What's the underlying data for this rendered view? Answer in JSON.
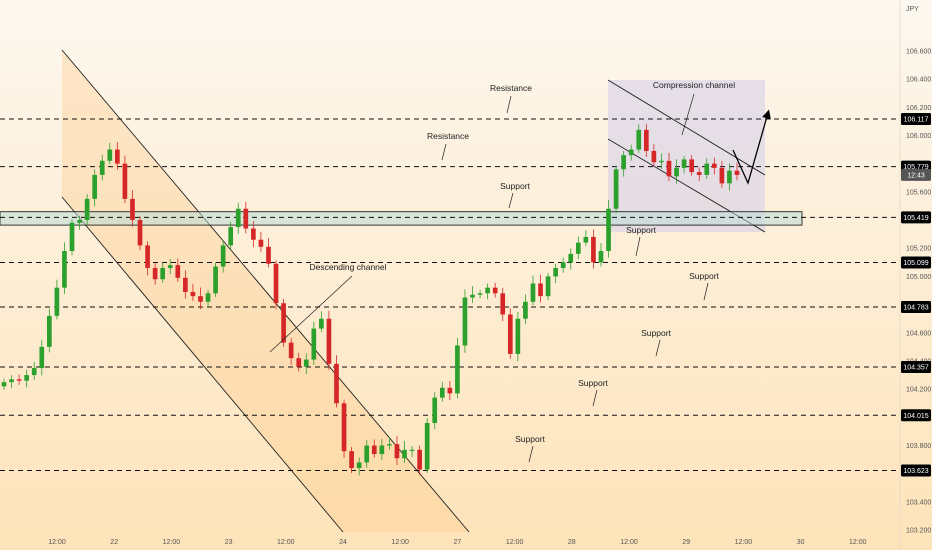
{
  "chart_data": {
    "type": "candlestick",
    "currency_label": "JPY",
    "price_ticks": [
      "106.600",
      "106.400",
      "106.200",
      "106.000",
      "105.800",
      "105.600",
      "105.400",
      "105.200",
      "105.000",
      "104.800",
      "104.600",
      "104.400",
      "104.200",
      "104.000",
      "103.800",
      "103.600",
      "103.400",
      "103.200"
    ],
    "tick_values": [
      106.6,
      106.4,
      106.2,
      106.0,
      105.8,
      105.6,
      105.4,
      105.2,
      105.0,
      104.8,
      104.6,
      104.4,
      104.2,
      104.0,
      103.8,
      103.6,
      103.4,
      103.2
    ],
    "ylim": [
      103.13,
      106.89
    ],
    "time_labels": [
      "12:00",
      "22",
      "12:00",
      "23",
      "12:00",
      "24",
      "12:00",
      "27",
      "12:00",
      "28",
      "12:00",
      "29",
      "12:00",
      "30",
      "12:00"
    ],
    "level_labels": [
      "106.117",
      "105.779",
      "105.419",
      "105.099",
      "104.783",
      "104.357",
      "104.015",
      "103.623"
    ],
    "levels": [
      106.117,
      105.779,
      105.419,
      105.099,
      104.783,
      104.357,
      104.015,
      103.623
    ],
    "current_price_label": "12:43",
    "current_price": 105.72,
    "up_color": "#2ca02c",
    "down_color": "#d62728",
    "annotations": [
      "Resistance",
      "Resistance",
      "Support",
      "Support",
      "Support",
      "Support",
      "Support",
      "Support",
      "Descending channel",
      "Compression channel"
    ],
    "candles_close": [
      104.25,
      104.27,
      104.26,
      104.3,
      104.35,
      104.5,
      104.72,
      104.92,
      105.18,
      105.38,
      105.4,
      105.55,
      105.72,
      105.82,
      105.9,
      105.8,
      105.55,
      105.4,
      105.22,
      105.06,
      104.98,
      105.06,
      105.08,
      104.99,
      104.89,
      104.86,
      104.82,
      104.88,
      105.07,
      105.22,
      105.35,
      105.48,
      105.34,
      105.26,
      105.21,
      105.09,
      104.81,
      104.53,
      104.42,
      104.36,
      104.41,
      104.63,
      104.7,
      104.38,
      104.1,
      103.76,
      103.64,
      103.68,
      103.8,
      103.74,
      103.8,
      103.81,
      103.71,
      103.77,
      103.77,
      103.63,
      103.96,
      104.14,
      104.21,
      104.17,
      104.51,
      104.85,
      104.87,
      104.88,
      104.92,
      104.88,
      104.73,
      104.45,
      104.7,
      104.82,
      104.95,
      104.86,
      105.0,
      105.06,
      105.1,
      105.16,
      105.24,
      105.28,
      105.1,
      105.18,
      105.48,
      105.76,
      105.86,
      105.9,
      106.04,
      105.89,
      105.81,
      105.82,
      105.71,
      105.77,
      105.83,
      105.74,
      105.72,
      105.8,
      105.77,
      105.66,
      105.75,
      105.72
    ]
  }
}
